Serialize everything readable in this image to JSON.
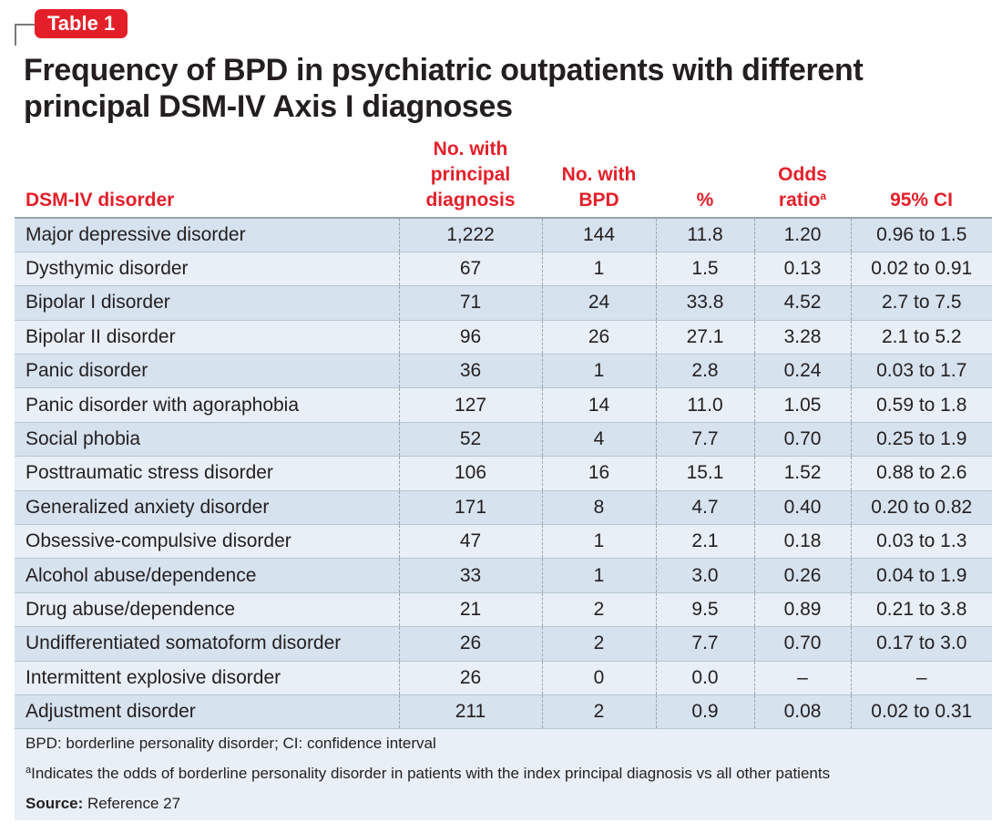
{
  "tag": "Table 1",
  "title": "Frequency of BPD in psychiatric outpatients with different principal DSM-IV Axis I diagnoses",
  "headers": {
    "disorder": "DSM-IV disorder",
    "principal_line1": "No. with",
    "principal_line2": "principal",
    "principal_line3": "diagnosis",
    "bpd_line1": "No. with",
    "bpd_line2": "BPD",
    "percent": "%",
    "odds_line1": "Odds",
    "odds_line2": "ratio",
    "odds_sup": "a",
    "ci": "95% CI"
  },
  "rows": [
    {
      "disorder": "Major depressive disorder",
      "n_principal": "1,222",
      "n_bpd": "144",
      "pct": "11.8",
      "or": "1.20",
      "ci": "0.96 to 1.5"
    },
    {
      "disorder": "Dysthymic disorder",
      "n_principal": "67",
      "n_bpd": "1",
      "pct": "1.5",
      "or": "0.13",
      "ci": "0.02 to 0.91"
    },
    {
      "disorder": "Bipolar I disorder",
      "n_principal": "71",
      "n_bpd": "24",
      "pct": "33.8",
      "or": "4.52",
      "ci": "2.7 to 7.5"
    },
    {
      "disorder": "Bipolar II disorder",
      "n_principal": "96",
      "n_bpd": "26",
      "pct": "27.1",
      "or": "3.28",
      "ci": "2.1 to 5.2"
    },
    {
      "disorder": "Panic disorder",
      "n_principal": "36",
      "n_bpd": "1",
      "pct": "2.8",
      "or": "0.24",
      "ci": "0.03 to 1.7"
    },
    {
      "disorder": "Panic disorder with agoraphobia",
      "n_principal": "127",
      "n_bpd": "14",
      "pct": "11.0",
      "or": "1.05",
      "ci": "0.59 to 1.8"
    },
    {
      "disorder": "Social phobia",
      "n_principal": "52",
      "n_bpd": "4",
      "pct": "7.7",
      "or": "0.70",
      "ci": "0.25 to 1.9"
    },
    {
      "disorder": "Posttraumatic stress disorder",
      "n_principal": "106",
      "n_bpd": "16",
      "pct": "15.1",
      "or": "1.52",
      "ci": "0.88 to 2.6"
    },
    {
      "disorder": "Generalized anxiety disorder",
      "n_principal": "171",
      "n_bpd": "8",
      "pct": "4.7",
      "or": "0.40",
      "ci": "0.20 to 0.82"
    },
    {
      "disorder": "Obsessive-compulsive disorder",
      "n_principal": "47",
      "n_bpd": "1",
      "pct": "2.1",
      "or": "0.18",
      "ci": "0.03 to 1.3"
    },
    {
      "disorder": "Alcohol abuse/dependence",
      "n_principal": "33",
      "n_bpd": "1",
      "pct": "3.0",
      "or": "0.26",
      "ci": "0.04 to 1.9"
    },
    {
      "disorder": "Drug abuse/dependence",
      "n_principal": "21",
      "n_bpd": "2",
      "pct": "9.5",
      "or": "0.89",
      "ci": "0.21 to 3.8"
    },
    {
      "disorder": "Undifferentiated somatoform disorder",
      "n_principal": "26",
      "n_bpd": "2",
      "pct": "7.7",
      "or": "0.70",
      "ci": "0.17 to 3.0"
    },
    {
      "disorder": "Intermittent explosive disorder",
      "n_principal": "26",
      "n_bpd": "0",
      "pct": "0.0",
      "or": "–",
      "ci": "–"
    },
    {
      "disorder": "Adjustment disorder",
      "n_principal": "211",
      "n_bpd": "2",
      "pct": "0.9",
      "or": "0.08",
      "ci": "0.02 to 0.31"
    }
  ],
  "footer": {
    "abbrev": "BPD: borderline personality disorder; CI: confidence interval",
    "note_sup": "a",
    "note": "Indicates the odds of borderline personality disorder in patients with the index principal diagnosis vs all other patients",
    "source_label": "Source:",
    "source": " Reference 27"
  }
}
